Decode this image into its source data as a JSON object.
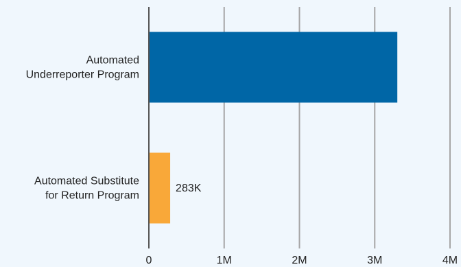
{
  "chart_data": {
    "type": "bar",
    "orientation": "horizontal",
    "categories": [
      [
        "Automated",
        "Underreporter Program"
      ],
      [
        "Automated Substitute",
        "for Return Program"
      ]
    ],
    "values": [
      3300000,
      283000
    ],
    "data_labels": [
      "",
      "283K"
    ],
    "colors": [
      "#0066a6",
      "#f9a839"
    ],
    "xlim": [
      0,
      4000000
    ],
    "x_ticks": [
      0,
      1000000,
      2000000,
      3000000,
      4000000
    ],
    "x_tick_labels": [
      "0",
      "1M",
      "2M",
      "3M",
      "4M"
    ],
    "grid": true,
    "title": "",
    "xlabel": "",
    "ylabel": ""
  }
}
